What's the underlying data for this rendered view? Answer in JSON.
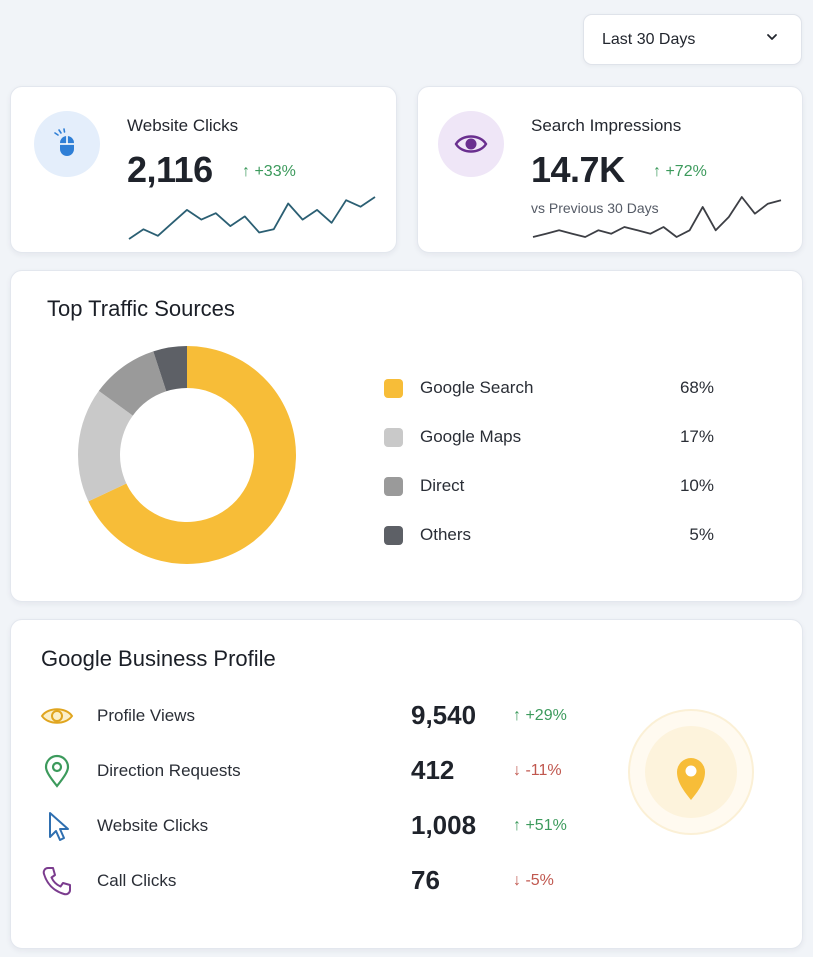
{
  "range_select": {
    "label": "Last 30 Days",
    "icon": "chevron-down-icon"
  },
  "kpis": [
    {
      "title": "Website Clicks",
      "value": "2,116",
      "delta": "↑ +33%",
      "subtitle": "",
      "icon": "mouse-icon",
      "icon_bg": "#e4eefb",
      "icon_color": "#2f7fd6",
      "trend": [
        3,
        6,
        4,
        8,
        12,
        9,
        11,
        7,
        10,
        5,
        6,
        14,
        9,
        12,
        8,
        15,
        13,
        16
      ]
    },
    {
      "title": "Search Impressions",
      "value": "14.7K",
      "delta": "↑ +72%",
      "subtitle": "vs Previous 30 Days",
      "icon": "eye-icon",
      "icon_bg": "#efe6f7",
      "icon_color": "#6a2f8f",
      "trend": [
        3,
        4,
        5,
        4,
        3,
        5,
        4,
        6,
        5,
        4,
        6,
        3,
        5,
        12,
        5,
        9,
        15,
        10,
        13,
        14
      ]
    }
  ],
  "traffic": {
    "title": "Top Traffic Sources",
    "sources": [
      {
        "label": "Google Search",
        "pct": "68%",
        "value": 68,
        "color": "#f7bd38"
      },
      {
        "label": "Google Maps",
        "pct": "17%",
        "value": 17,
        "color": "#c9c9c9"
      },
      {
        "label": "Direct",
        "pct": "10%",
        "value": 10,
        "color": "#9a9a9a"
      },
      {
        "label": "Others",
        "pct": "5%",
        "value": 5,
        "color": "#5d6066"
      }
    ]
  },
  "business_profile": {
    "title": "Google Business Profile",
    "rows": [
      {
        "label": "Profile Views",
        "value": "9,540",
        "delta": "↑ +29%",
        "dir": "up",
        "icon": "eye-icon",
        "icon_color": "#e0a51f"
      },
      {
        "label": "Direction Requests",
        "value": "412",
        "delta": "↓ -11%",
        "dir": "down",
        "icon": "map-pin-icon",
        "icon_color": "#3c9a5c"
      },
      {
        "label": "Website Clicks",
        "value": "1,008",
        "delta": "↑ +51%",
        "dir": "up",
        "icon": "cursor-icon",
        "icon_color": "#2f6fb0"
      },
      {
        "label": "Call Clicks",
        "value": "76",
        "delta": "↓ -5%",
        "dir": "down",
        "icon": "phone-icon",
        "icon_color": "#7b3c8e"
      }
    ],
    "badge_icon": "location-pin-icon",
    "badge_color": "#f7bd38"
  }
}
